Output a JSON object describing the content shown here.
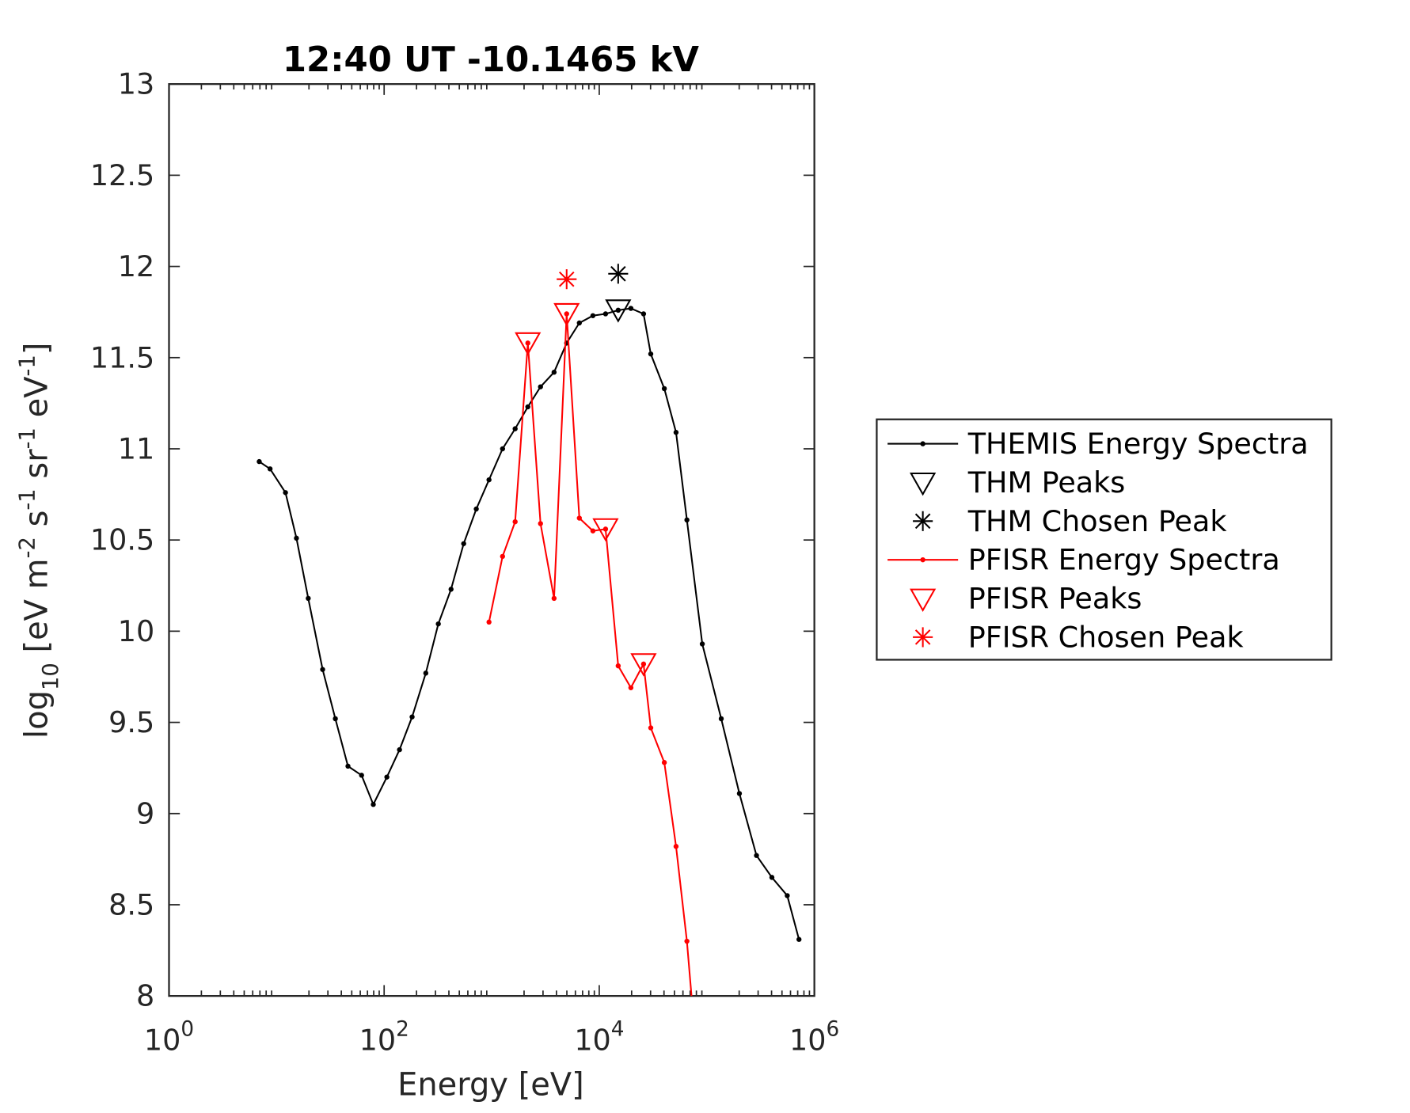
{
  "chart_data": {
    "type": "line",
    "title": "12:40 UT -10.1465 kV",
    "x_label": "Energy [eV]",
    "y_label": [
      {
        "text": "log"
      },
      {
        "text": "10",
        "shift": "sub"
      },
      {
        "text": " [eV m"
      },
      {
        "text": "-2",
        "shift": "super"
      },
      {
        "text": " s"
      },
      {
        "text": "-1",
        "shift": "super"
      },
      {
        "text": " sr"
      },
      {
        "text": "-1",
        "shift": "super"
      },
      {
        "text": " eV"
      },
      {
        "text": "-1",
        "shift": "super"
      },
      {
        "text": "]"
      }
    ],
    "x_scale": "log",
    "xlim": [
      1,
      1000000
    ],
    "xticks": [
      {
        "value": 1,
        "label": "10",
        "exponent": "0"
      },
      {
        "value": 100,
        "label": "10",
        "exponent": "2"
      },
      {
        "value": 10000,
        "label": "10",
        "exponent": "4"
      },
      {
        "value": 1000000,
        "label": "10",
        "exponent": "6"
      }
    ],
    "ylim": [
      8,
      13
    ],
    "yticks": [
      8,
      8.5,
      9,
      9.5,
      10,
      10.5,
      11,
      11.5,
      12,
      12.5,
      13
    ],
    "legend": "outside-right",
    "series": [
      {
        "name": "THEMIS Energy Spectra",
        "color": "#000000",
        "marker": "dot-line",
        "x": [
          6.9,
          8.7,
          12.1,
          15.3,
          19.7,
          26.8,
          35.2,
          46.1,
          61.7,
          79.3,
          106,
          139,
          182,
          244,
          319,
          419,
          549,
          719,
          944,
          1262,
          1652,
          2168,
          2844,
          3802,
          4977,
          6531,
          8730,
          11450,
          15000,
          19680,
          25820,
          30130,
          40270,
          51760,
          65310,
          90780,
          136200,
          200900,
          289700,
          402700,
          559800,
          719500
        ],
        "values": [
          10.93,
          10.89,
          10.76,
          10.51,
          10.18,
          9.79,
          9.52,
          9.26,
          9.21,
          9.05,
          9.2,
          9.35,
          9.53,
          9.77,
          10.04,
          10.23,
          10.48,
          10.67,
          10.83,
          11.0,
          11.11,
          11.23,
          11.34,
          11.42,
          11.58,
          11.69,
          11.73,
          11.74,
          11.76,
          11.77,
          11.74,
          11.52,
          11.33,
          11.09,
          10.61,
          9.93,
          9.52,
          9.11,
          8.77,
          8.65,
          8.55,
          8.31
        ]
      },
      {
        "name": "THM Peaks",
        "color": "#000000",
        "marker": "triangle",
        "x": [
          15000
        ],
        "values": [
          11.76
        ]
      },
      {
        "name": "THM Chosen Peak",
        "color": "#000000",
        "marker": "asterisk",
        "x": [
          15000
        ],
        "values": [
          11.96
        ]
      },
      {
        "name": "PFISR Energy Spectra",
        "color": "#ff0000",
        "marker": "dot-line",
        "x": [
          944,
          1262,
          1652,
          2168,
          2844,
          3802,
          4977,
          6531,
          8730,
          11450,
          15000,
          19680,
          25820,
          30130,
          40270,
          51760,
          65310,
          90780
        ],
        "values": [
          10.05,
          10.41,
          10.6,
          11.58,
          10.59,
          10.18,
          11.74,
          10.62,
          10.55,
          10.56,
          9.81,
          9.69,
          9.82,
          9.47,
          9.28,
          8.82,
          8.3,
          7.3
        ]
      },
      {
        "name": "PFISR Peaks",
        "color": "#ff0000",
        "marker": "triangle",
        "x": [
          2168,
          4977,
          11450,
          25820
        ],
        "values": [
          11.58,
          11.74,
          10.56,
          9.82
        ]
      },
      {
        "name": "PFISR Chosen Peak",
        "color": "#ff0000",
        "marker": "asterisk",
        "x": [
          4977
        ],
        "values": [
          11.93
        ]
      }
    ]
  }
}
